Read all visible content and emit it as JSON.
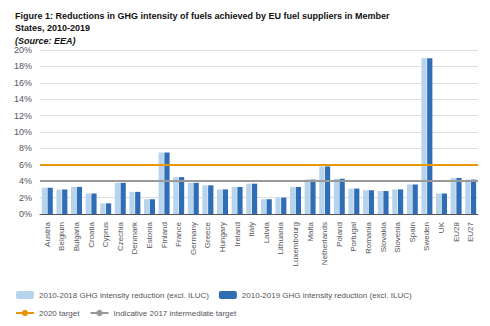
{
  "chart_data": {
    "type": "bar",
    "title": "Figure 1: Reductions in GHG intensity of fuels achieved by EU fuel suppliers in Member\nStates, 2010-2019",
    "subtitle": "(Source: EEA)",
    "categories": [
      "Austria",
      "Belgium",
      "Bulgaria",
      "Croatia",
      "Cyprus",
      "Czechia",
      "Denmark",
      "Estonia",
      "Finland",
      "France",
      "Germany",
      "Greece",
      "Hungary",
      "Ireland",
      "Italy",
      "Latvia",
      "Lithuania",
      "Luxembourg",
      "Malta",
      "Netherlands",
      "Poland",
      "Portugal",
      "Romania",
      "Slovakia",
      "Slovenia",
      "Spain",
      "Sweden",
      "UK",
      "EU28",
      "EU27"
    ],
    "series": [
      {
        "name": "2010-2018 GHG intensity reduction (excl. ILUC)",
        "type": "bar",
        "color": "#b8d4ec",
        "values": [
          3.2,
          3.0,
          3.3,
          2.5,
          1.3,
          3.8,
          2.7,
          1.8,
          7.5,
          4.5,
          3.8,
          3.5,
          3.0,
          3.3,
          3.7,
          1.8,
          2.0,
          3.3,
          4.2,
          5.8,
          4.3,
          3.1,
          2.9,
          2.8,
          3.0,
          3.6,
          19.0,
          2.5,
          4.4,
          4.2
        ]
      },
      {
        "name": "2010-2019 GHG intensity reduction (excl. ILUC)",
        "type": "bar",
        "color": "#2f6db5",
        "values": [
          3.2,
          3.0,
          3.3,
          2.5,
          1.3,
          3.8,
          2.7,
          1.8,
          7.5,
          4.5,
          3.8,
          3.5,
          3.0,
          3.3,
          3.7,
          1.8,
          2.0,
          3.3,
          4.2,
          5.8,
          4.3,
          3.1,
          2.9,
          2.8,
          3.0,
          3.6,
          19.0,
          2.5,
          4.4,
          4.2
        ]
      },
      {
        "name": "2020 target",
        "type": "hline",
        "color": "#e8960a",
        "value": 6.0
      },
      {
        "name": "Indicative 2017 intermediate target",
        "type": "hline",
        "color": "#999999",
        "value": 4.0
      }
    ],
    "ylim": [
      0,
      20
    ],
    "yticks": [
      {
        "value": 0,
        "label": "0%"
      },
      {
        "value": 2,
        "label": "2%"
      },
      {
        "value": 4,
        "label": "4%"
      },
      {
        "value": 6,
        "label": "6%"
      },
      {
        "value": 8,
        "label": "8%"
      },
      {
        "value": 10,
        "label": "10%"
      },
      {
        "value": 12,
        "label": "12%"
      },
      {
        "value": 14,
        "label": "14%"
      },
      {
        "value": 16,
        "label": "16%"
      },
      {
        "value": 18,
        "label": "18%"
      },
      {
        "value": 20,
        "label": "20%"
      }
    ],
    "grid": true,
    "legend": "bottom"
  }
}
